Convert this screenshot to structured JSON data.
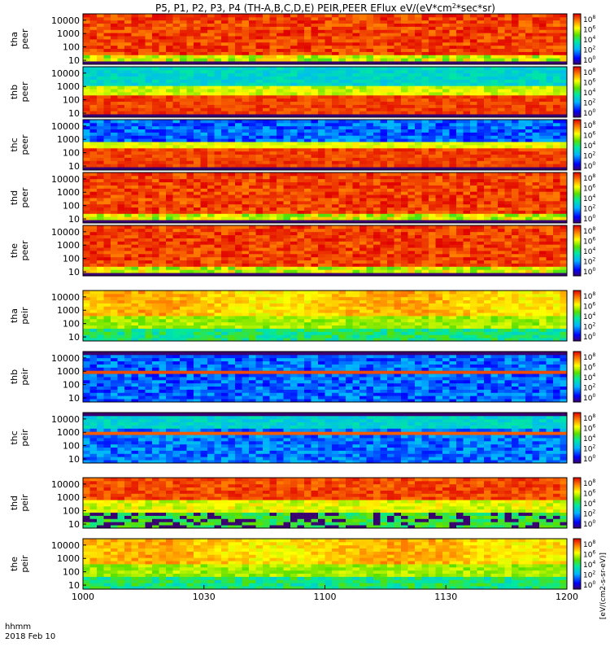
{
  "title": "P5, P1, P2, P3, P4 (TH-A,B,C,D,E) PEIR,PEER EFlux eV/(eV*cm",
  "title_sup": "2",
  "title_end": "*sec*sr)",
  "colorbar_unit": "[eV/(cm2-s-sr-eV)]",
  "time_axis": {
    "ticks": [
      "1000",
      "1030",
      "1100",
      "1130",
      "1200"
    ],
    "label_line1": "hhmm",
    "label_line2": "2018 Feb 10"
  },
  "chart_data": [
    {
      "type": "heatmap",
      "name": "tha peer",
      "ylabel": [
        "tha",
        "peer"
      ],
      "yticks": [
        "10000",
        "1000",
        "100",
        "10"
      ],
      "yscale": "log",
      "ylim": [
        5,
        30000
      ],
      "xlim": [
        "1000",
        "1200"
      ],
      "colorbar_ticks": [
        "10^8",
        "10^6",
        "10^4",
        "10^2",
        "10^0"
      ],
      "colorscale": "rainbow",
      "variant": "peer_a"
    },
    {
      "type": "heatmap",
      "name": "thb peer",
      "ylabel": [
        "thb",
        "peer"
      ],
      "yticks": [
        "10000",
        "1000",
        "100",
        "10"
      ],
      "yscale": "log",
      "ylim": [
        5,
        30000
      ],
      "xlim": [
        "1000",
        "1200"
      ],
      "colorbar_ticks": [
        "10^8",
        "10^6",
        "10^4",
        "10^2",
        "10^0"
      ],
      "colorscale": "rainbow",
      "variant": "peer_b"
    },
    {
      "type": "heatmap",
      "name": "thc peer",
      "ylabel": [
        "thc",
        "peer"
      ],
      "yticks": [
        "10000",
        "1000",
        "100",
        "10"
      ],
      "yscale": "log",
      "ylim": [
        5,
        30000
      ],
      "xlim": [
        "1000",
        "1200"
      ],
      "colorbar_ticks": [
        "10^8",
        "10^6",
        "10^4",
        "10^2",
        "10^0"
      ],
      "colorscale": "rainbow",
      "variant": "peer_c"
    },
    {
      "type": "heatmap",
      "name": "thd peer",
      "ylabel": [
        "thd",
        "peer"
      ],
      "yticks": [
        "10000",
        "1000",
        "100",
        "10"
      ],
      "yscale": "log",
      "ylim": [
        5,
        30000
      ],
      "xlim": [
        "1000",
        "1200"
      ],
      "colorbar_ticks": [
        "10^8",
        "10^6",
        "10^4",
        "10^2",
        "10^0"
      ],
      "colorscale": "rainbow",
      "variant": "peer_a"
    },
    {
      "type": "heatmap",
      "name": "the peer",
      "ylabel": [
        "the",
        "peer"
      ],
      "yticks": [
        "10000",
        "1000",
        "100",
        "10"
      ],
      "yscale": "log",
      "ylim": [
        5,
        30000
      ],
      "xlim": [
        "1000",
        "1200"
      ],
      "colorbar_ticks": [
        "10^8",
        "10^6",
        "10^4",
        "10^2",
        "10^0"
      ],
      "colorscale": "rainbow",
      "variant": "peer_a"
    },
    {
      "type": "heatmap",
      "name": "tha peir",
      "ylabel": [
        "tha",
        "peir"
      ],
      "yticks": [
        "10000",
        "1000",
        "100",
        "10"
      ],
      "yscale": "log",
      "ylim": [
        5,
        30000
      ],
      "xlim": [
        "1000",
        "1200"
      ],
      "colorbar_ticks": [
        "10^8",
        "10^6",
        "10^4",
        "10^2",
        "10^0"
      ],
      "colorscale": "rainbow",
      "variant": "peir_a"
    },
    {
      "type": "heatmap",
      "name": "thb peir",
      "ylabel": [
        "thb",
        "peir"
      ],
      "yticks": [
        "10000",
        "1000",
        "100",
        "10"
      ],
      "yscale": "log",
      "ylim": [
        5,
        30000
      ],
      "xlim": [
        "1000",
        "1200"
      ],
      "colorbar_ticks": [
        "10^8",
        "10^6",
        "10^4",
        "10^2",
        "10^0"
      ],
      "colorscale": "rainbow",
      "variant": "peir_b"
    },
    {
      "type": "heatmap",
      "name": "thc peir",
      "ylabel": [
        "thc",
        "peir"
      ],
      "yticks": [
        "10000",
        "1000",
        "100",
        "10"
      ],
      "yscale": "log",
      "ylim": [
        5,
        30000
      ],
      "xlim": [
        "1000",
        "1200"
      ],
      "colorbar_ticks": [
        "10^8",
        "10^6",
        "10^4",
        "10^2",
        "10^0"
      ],
      "colorscale": "rainbow",
      "variant": "peir_c"
    },
    {
      "type": "heatmap",
      "name": "thd peir",
      "ylabel": [
        "thd",
        "peir"
      ],
      "yticks": [
        "10000",
        "1000",
        "100",
        "10"
      ],
      "yscale": "log",
      "ylim": [
        5,
        30000
      ],
      "xlim": [
        "1000",
        "1200"
      ],
      "colorbar_ticks": [
        "10^8",
        "10^6",
        "10^4",
        "10^2",
        "10^0"
      ],
      "colorscale": "rainbow",
      "variant": "peir_d"
    },
    {
      "type": "heatmap",
      "name": "the peir",
      "ylabel": [
        "the",
        "peir"
      ],
      "yticks": [
        "10000",
        "1000",
        "100",
        "10"
      ],
      "yscale": "log",
      "ylim": [
        5,
        30000
      ],
      "xlim": [
        "1000",
        "1200"
      ],
      "colorbar_ticks": [
        "10^8",
        "10^6",
        "10^4",
        "10^2",
        "10^0"
      ],
      "colorscale": "rainbow",
      "variant": "peir_a"
    }
  ]
}
